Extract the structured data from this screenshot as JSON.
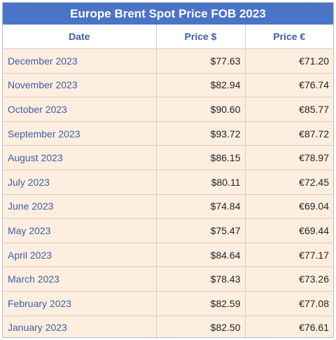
{
  "chart_data": {
    "type": "table",
    "title": "Europe Brent Spot Price FOB 2023",
    "columns": [
      "Date",
      "Price $",
      "Price €"
    ],
    "rows": [
      {
        "date": "December 2023",
        "usd": "$77.63",
        "eur": "€71.20"
      },
      {
        "date": "November 2023",
        "usd": "$82.94",
        "eur": "€76.74"
      },
      {
        "date": "October 2023",
        "usd": "$90.60",
        "eur": "€85.77"
      },
      {
        "date": "September 2023",
        "usd": "$93.72",
        "eur": "€87.72"
      },
      {
        "date": "August 2023",
        "usd": "$86.15",
        "eur": "€78.97"
      },
      {
        "date": "July 2023",
        "usd": "$80.11",
        "eur": "€72.45"
      },
      {
        "date": "June 2023",
        "usd": "$74.84",
        "eur": "€69.04"
      },
      {
        "date": "May 2023",
        "usd": "$75.47",
        "eur": "€69.44"
      },
      {
        "date": "April 2023",
        "usd": "$84.64",
        "eur": "€77.17"
      },
      {
        "date": "March 2023",
        "usd": "$78.43",
        "eur": "€73.26"
      },
      {
        "date": "February 2023",
        "usd": "$82.59",
        "eur": "€77.08"
      },
      {
        "date": "January 2023",
        "usd": "$82.50",
        "eur": "€76.61"
      }
    ]
  },
  "colors": {
    "title_bg": "#4a74c8",
    "header_text": "#3c5fa6",
    "row_bg": "#fdeee0",
    "date_text": "#3c5fa6"
  }
}
